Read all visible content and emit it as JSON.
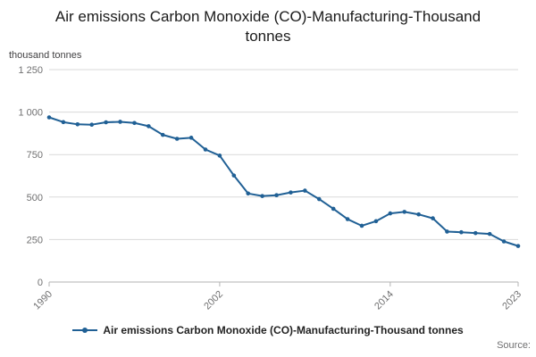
{
  "title": "Air emissions Carbon Monoxide (CO)-Manufacturing-Thousand tonnes",
  "y_unit_label": "thousand tonnes",
  "source_label": "Source:",
  "legend": {
    "label": "Air emissions Carbon Monoxide (CO)-Manufacturing-Thousand tonnes"
  },
  "colors": {
    "line": "#206095",
    "grid": "#d9d9d9",
    "axis_line": "#b3b3b3",
    "axis_text": "#707071",
    "title_text": "#1a1a1a"
  },
  "chart_data": {
    "type": "line",
    "title": "Air emissions Carbon Monoxide (CO)-Manufacturing-Thousand tonnes",
    "xlabel": "",
    "ylabel": "thousand tonnes",
    "ylim": [
      0,
      1250
    ],
    "grid": "horizontal",
    "legend_position": "bottom",
    "x": [
      1990,
      1991,
      1992,
      1993,
      1994,
      1995,
      1996,
      1997,
      1998,
      1999,
      2000,
      2001,
      2002,
      2003,
      2004,
      2005,
      2006,
      2007,
      2008,
      2009,
      2010,
      2011,
      2012,
      2013,
      2014,
      2015,
      2016,
      2017,
      2018,
      2019,
      2020,
      2021,
      2022,
      2023
    ],
    "series": [
      {
        "name": "Air emissions Carbon Monoxide (CO)-Manufacturing-Thousand tonnes",
        "values": [
          969,
          941,
          928,
          926,
          940,
          943,
          936,
          917,
          866,
          843,
          849,
          780,
          744,
          627,
          521,
          506,
          511,
          527,
          538,
          488,
          431,
          370,
          331,
          358,
          404,
          413,
          398,
          375,
          297,
          293,
          288,
          283,
          239,
          212
        ]
      }
    ],
    "y_ticks": [
      {
        "value": 1250,
        "label": "1 250"
      },
      {
        "value": 1000,
        "label": "1 000"
      },
      {
        "value": 750,
        "label": "750"
      },
      {
        "value": 500,
        "label": "500"
      },
      {
        "value": 250,
        "label": "250"
      },
      {
        "value": 0,
        "label": "0"
      }
    ],
    "x_ticks": [
      {
        "value": 1990,
        "label": "1990"
      },
      {
        "value": 2002,
        "label": "2002"
      },
      {
        "value": 2014,
        "label": "2014"
      },
      {
        "value": 2023,
        "label": "2023"
      }
    ]
  }
}
